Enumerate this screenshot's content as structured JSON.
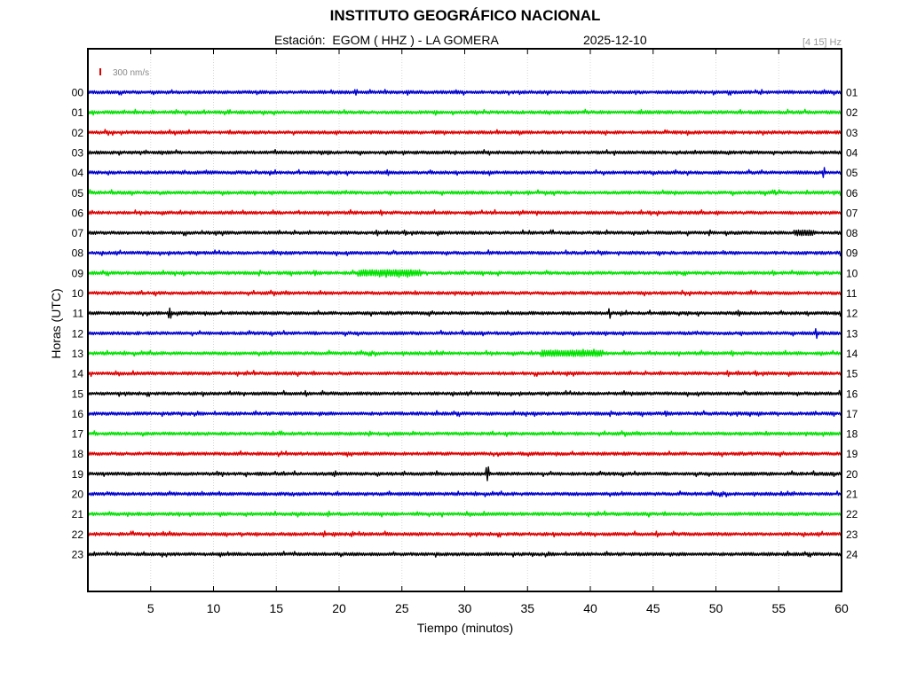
{
  "header": {
    "title": "INSTITUTO GEOGRÁFICO NACIONAL",
    "station_line": "Estación:  EGOM ( HHZ ) - LA GOMERA",
    "date": "2025-12-10",
    "filter_band": "[4 15] Hz"
  },
  "chart_data": {
    "type": "line",
    "title": "INSTITUTO GEOGRÁFICO NACIONAL",
    "xlabel": "Tiempo (minutos)",
    "ylabel": "Horas (UTC)",
    "xlim": [
      0,
      60
    ],
    "x_ticks": [
      "5",
      "10",
      "15",
      "20",
      "25",
      "30",
      "35",
      "40",
      "45",
      "50",
      "55",
      "60"
    ],
    "left_ticks": [
      "00",
      "01",
      "02",
      "03",
      "04",
      "05",
      "06",
      "07",
      "08",
      "09",
      "10",
      "11",
      "12",
      "13",
      "14",
      "15",
      "16",
      "17",
      "18",
      "19",
      "20",
      "21",
      "22",
      "23"
    ],
    "right_ticks": [
      "01",
      "02",
      "03",
      "04",
      "05",
      "06",
      "07",
      "08",
      "09",
      "10",
      "11",
      "12",
      "13",
      "14",
      "15",
      "16",
      "17",
      "18",
      "19",
      "20",
      "21",
      "22",
      "23",
      "24"
    ],
    "scale_label": "300 nm/s",
    "grid": "vertical dotted at 5-minute intervals",
    "trace_colors": [
      "#0000cc",
      "#00e000",
      "#dd0000",
      "#000000"
    ],
    "events": [
      {
        "hour": 4,
        "minute": 58.6,
        "amplitude": "small spike"
      },
      {
        "hour": 7,
        "minute": 57.0,
        "amplitude": "small burst"
      },
      {
        "hour": 9,
        "minute": 24.0,
        "amplitude": "noise burst"
      },
      {
        "hour": 11,
        "minute": 6.5,
        "amplitude": "small spike"
      },
      {
        "hour": 11,
        "minute": 41.5,
        "amplitude": "small spike"
      },
      {
        "hour": 12,
        "minute": 58.0,
        "amplitude": "small spike"
      },
      {
        "hour": 13,
        "minute": 38.5,
        "amplitude": "noise burst"
      },
      {
        "hour": 19,
        "minute": 31.8,
        "amplitude": "spike"
      }
    ]
  }
}
